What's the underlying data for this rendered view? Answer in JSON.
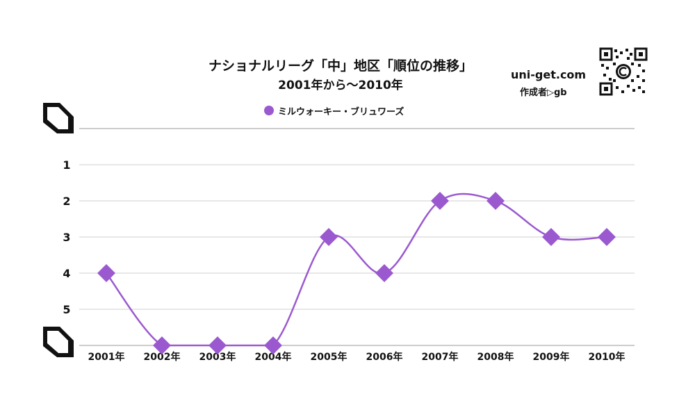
{
  "chart_data": {
    "type": "line",
    "title": "ナショナルリーグ「中」地区「順位の推移」",
    "subtitle": "2001年から〜2010年",
    "categories": [
      "2001年",
      "2002年",
      "2003年",
      "2004年",
      "2005年",
      "2006年",
      "2007年",
      "2008年",
      "2009年",
      "2010年"
    ],
    "series": [
      {
        "name": "ミルウォーキー・ブリュワーズ",
        "values": [
          4,
          6,
          6,
          6,
          3,
          4,
          2,
          2,
          3,
          3
        ],
        "color": "#9b59d0",
        "marker": "diamond"
      }
    ],
    "yticks": [
      "1",
      "2",
      "3",
      "4",
      "5"
    ],
    "ylim": [
      0,
      6
    ],
    "y_reversed": true,
    "grid": true,
    "legend": "top-center",
    "curve": "smooth"
  },
  "credit": {
    "site": "uni-get.com",
    "author": "作成者▷gb"
  },
  "icons": {
    "qr": "qr-code-icon",
    "corner": "bracket-corner-icon"
  }
}
